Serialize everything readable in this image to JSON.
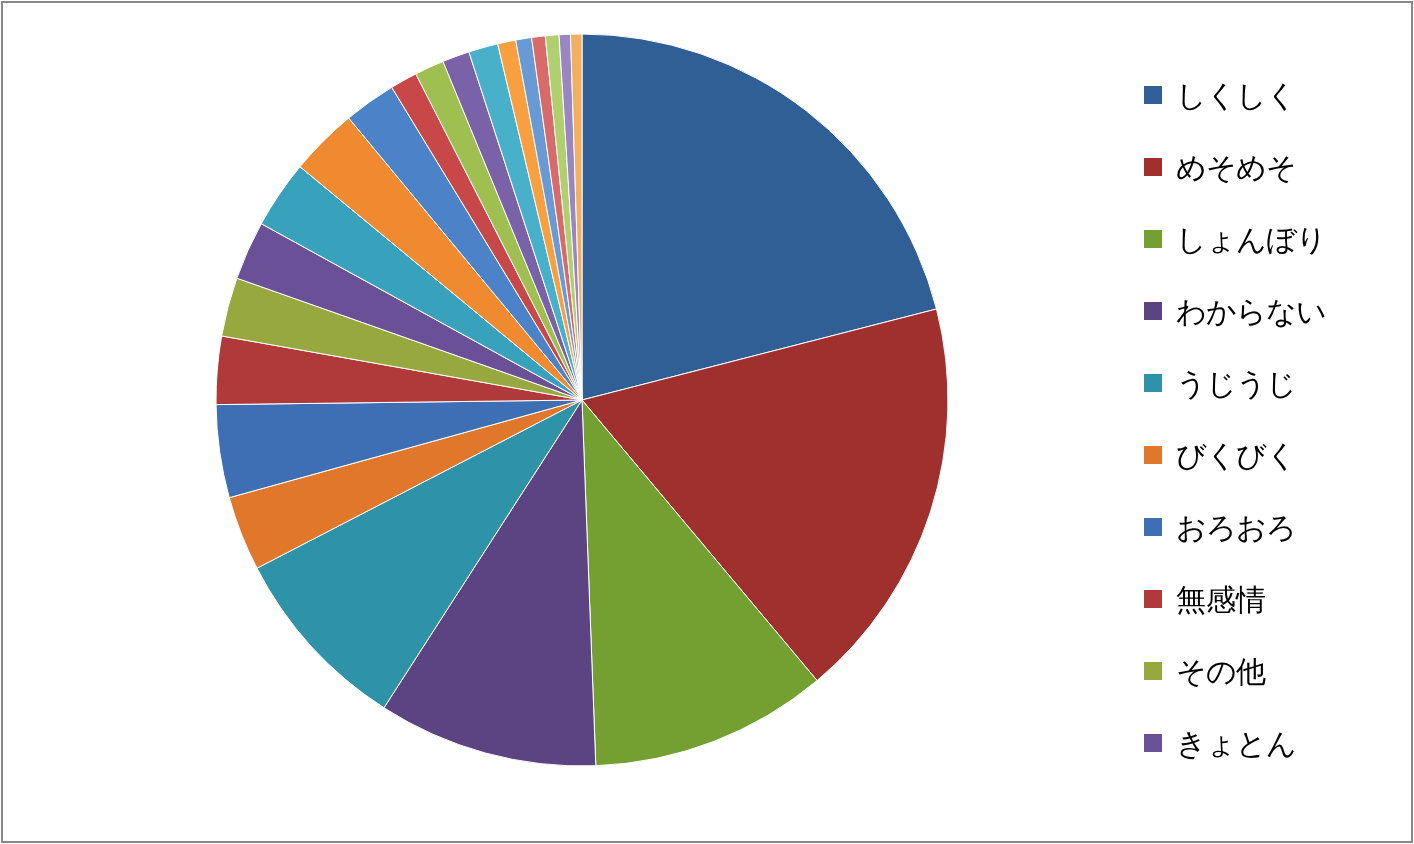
{
  "chart_data": {
    "type": "pie",
    "categories": [
      "しくしく",
      "めそめそ",
      "しょんぼり",
      "わからない",
      "うじうじ",
      "びくびく",
      "おろおろ",
      "無感情",
      "その他",
      "きょとん",
      null,
      null,
      null,
      null,
      null,
      null,
      null,
      null,
      null,
      null,
      null,
      null,
      null
    ],
    "values": [
      21.0,
      17.9,
      10.5,
      9.7,
      8.3,
      3.3,
      4.1,
      3.0,
      2.6,
      2.6,
      3.0,
      3.0,
      2.3,
      1.2,
      1.3,
      1.2,
      1.3,
      0.8,
      0.7,
      0.6,
      0.6,
      0.5,
      0.5
    ],
    "colors": [
      "#2f5f95",
      "#a0302e",
      "#74a032",
      "#5c4482",
      "#2e92a8",
      "#e0772a",
      "#3e6fb5",
      "#b03a3a",
      "#97a83e",
      "#6a5096",
      "#38a2bc",
      "#f08a30",
      "#4b82c8",
      "#c8484a",
      "#9fc050",
      "#7a62a8",
      "#48b0c8",
      "#f8a040",
      "#6a9ad6",
      "#d86a6a",
      "#b0d070",
      "#9a86c0",
      "#f0b060"
    ],
    "legend": "right"
  }
}
